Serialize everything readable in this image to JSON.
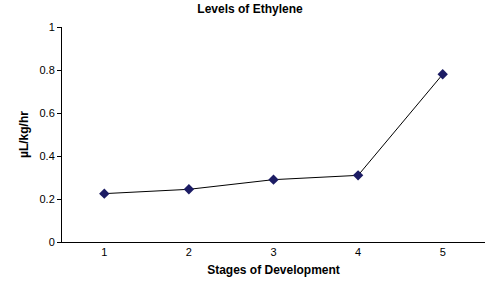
{
  "chart_data": {
    "type": "line",
    "title": "Levels of Ethylene",
    "x_label": "Stages of Development",
    "y_label": "µL/kg/hr",
    "categories": [
      "1",
      "2",
      "3",
      "4",
      "5"
    ],
    "values": [
      0.225,
      0.245,
      0.29,
      0.31,
      0.78
    ],
    "color": "#1c1c64",
    "marker": "diamond",
    "ylim": [
      0,
      1
    ],
    "yticks": [
      0,
      0.2,
      0.4,
      0.6,
      0.8,
      1
    ],
    "grid": false
  }
}
